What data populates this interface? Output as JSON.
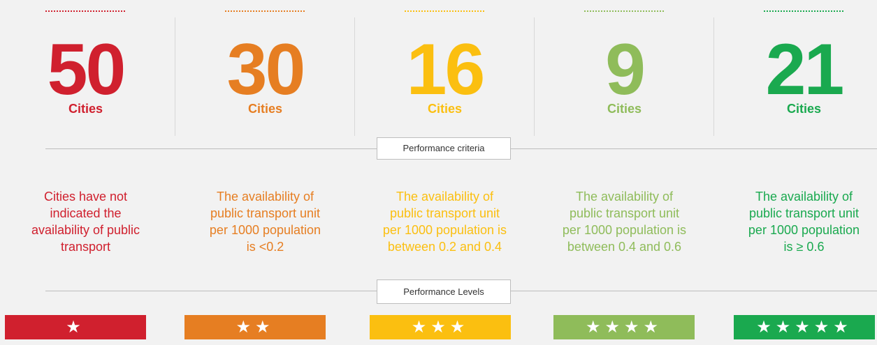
{
  "columns": [
    {
      "number": "50",
      "unit": "Cities",
      "color": "#d0202e",
      "description": [
        "Cities have not",
        "indicated the",
        "availability of public",
        "transport"
      ],
      "stars": "★"
    },
    {
      "number": "30",
      "unit": "Cities",
      "color": "#e67e22",
      "description": [
        "The availability of",
        "public transport unit",
        "per 1000 population",
        "is <0.2"
      ],
      "stars": "★★"
    },
    {
      "number": "16",
      "unit": "Cities",
      "color": "#fbbf10",
      "description": [
        "The availability of",
        "public transport unit",
        "per 1000 population is",
        "between 0.2 and 0.4"
      ],
      "stars": "★★★"
    },
    {
      "number": "9",
      "unit": "Cities",
      "color": "#8fbc5a",
      "description": [
        "The availability of",
        "public transport unit",
        "per 1000 population is",
        "between 0.4 and 0.6"
      ],
      "stars": "★★★★"
    },
    {
      "number": "21",
      "unit": "Cities",
      "color": "#1aa94f",
      "description": [
        "The availability of",
        "public transport unit",
        "per 1000 population",
        "is ≥ 0.6"
      ],
      "stars": "★★★★★"
    }
  ],
  "criteria_label": "Performance criteria",
  "levels_label": "Performance Levels"
}
